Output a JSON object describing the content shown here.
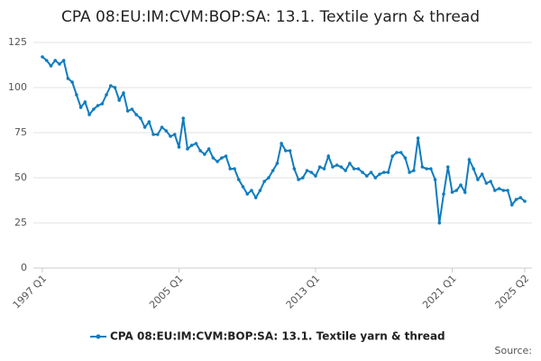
{
  "chart_data": {
    "type": "line",
    "title": "CPA 08:EU:IM:CVM:BOP:SA: 13.1. Textile yarn & thread",
    "source": "Source:",
    "categories": [
      "1997 Q1",
      null,
      null,
      null,
      null,
      null,
      null,
      null,
      null,
      null,
      null,
      null,
      null,
      null,
      null,
      null,
      null,
      null,
      null,
      null,
      null,
      null,
      null,
      null,
      null,
      null,
      null,
      null,
      null,
      null,
      null,
      null,
      "2005 Q1",
      null,
      null,
      null,
      null,
      null,
      null,
      null,
      null,
      null,
      null,
      null,
      null,
      null,
      null,
      null,
      null,
      null,
      null,
      null,
      null,
      null,
      null,
      null,
      null,
      null,
      null,
      null,
      null,
      null,
      null,
      null,
      "2013 Q1",
      null,
      null,
      null,
      null,
      null,
      null,
      null,
      null,
      null,
      null,
      null,
      null,
      null,
      null,
      null,
      null,
      null,
      null,
      null,
      null,
      null,
      null,
      null,
      null,
      null,
      null,
      null,
      null,
      null,
      null,
      null,
      "2021 Q1",
      null,
      null,
      null,
      null,
      null,
      null,
      null,
      null,
      null,
      null,
      null,
      null,
      null,
      null,
      null,
      null,
      "2025 Q2"
    ],
    "series": [
      {
        "name": "CPA 08:EU:IM:CVM:BOP:SA: 13.1. Textile yarn & thread",
        "color": "#0f7cbf",
        "values": [
          117,
          115,
          112,
          115,
          113,
          115,
          105,
          103,
          96,
          89,
          92,
          85,
          88,
          90,
          91,
          96,
          101,
          100,
          93,
          97,
          87,
          88,
          85,
          83,
          78,
          81,
          74,
          74,
          78,
          76,
          73,
          74,
          67,
          83,
          66,
          68,
          69,
          65,
          63,
          66,
          61,
          59,
          61,
          62,
          55,
          55,
          49,
          45,
          41,
          43,
          39,
          43,
          48,
          50,
          54,
          58,
          69,
          65,
          65,
          55,
          49,
          50,
          54,
          53,
          51,
          56,
          55,
          62,
          56,
          57,
          56,
          54,
          58,
          55,
          55,
          53,
          51,
          53,
          50,
          52,
          53,
          53,
          62,
          64,
          64,
          61,
          53,
          54,
          72,
          56,
          55,
          55,
          49,
          25,
          41,
          56,
          42,
          43,
          46,
          42,
          60,
          55,
          49,
          52,
          47,
          48,
          43,
          44,
          43,
          43,
          35,
          38,
          39,
          37
        ]
      }
    ],
    "ylim": [
      0,
      125
    ],
    "yticks": [
      0,
      25,
      50,
      75,
      100,
      125
    ],
    "grid": true
  }
}
